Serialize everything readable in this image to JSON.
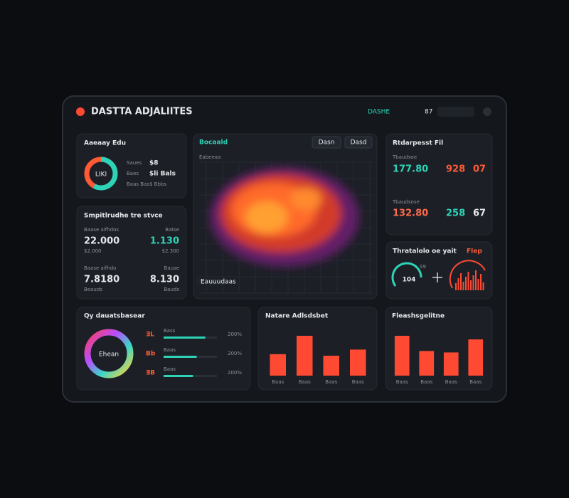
{
  "header": {
    "title": "DASTTA ADJALIITES",
    "status": "DASHE",
    "badge": "87"
  },
  "overview": {
    "title": "Aaeaay Edu",
    "center": "LIKI",
    "shares": [
      58,
      42
    ],
    "colors": [
      "#2ed3b7",
      "#ff5a36"
    ],
    "rows": [
      [
        "Saues",
        "$8"
      ],
      [
        "Baes",
        "$li Bals"
      ],
      [
        "Baas Bas",
        "$ Bbbs"
      ]
    ]
  },
  "summary": {
    "title": "Smpitlrudhe tre stvce",
    "stats": [
      {
        "label": "Baase aifhdos",
        "value": "22.000",
        "sub": "$2.000"
      },
      {
        "label": "Batse",
        "value": "1.130",
        "sub": "$2.300"
      },
      {
        "label": "Baase aifhdo",
        "value": "7.8180",
        "sub": "Beauds"
      },
      {
        "label": "Bause",
        "value": "8.130",
        "sub": "Bauds"
      }
    ]
  },
  "map": {
    "title": "Bocaald",
    "subtitle": "Eabeeaa",
    "buttons": [
      "Dasn",
      "Dasd"
    ],
    "legend": "Eauuudaas"
  },
  "metrics": {
    "title": "Rtdarpesst Fil",
    "groups": [
      {
        "label": "Tbaudsoe",
        "values": [
          "177.80",
          "928",
          "07"
        ]
      },
      {
        "label": "Tbaudsose",
        "values": [
          "132.80",
          "258",
          "67"
        ]
      }
    ]
  },
  "gauge": {
    "title": "Thratalolo oe yait",
    "accent": "Flep",
    "value": "104",
    "caption": "S9"
  },
  "distribution": {
    "title": "Qy dauatsbasear",
    "center": "Ehean",
    "rows": [
      {
        "label": "ƎL",
        "name": "Bass",
        "progress": 78,
        "value": "200%"
      },
      {
        "label": "Bb",
        "name": "Baas",
        "progress": 62,
        "value": "200%"
      },
      {
        "label": "ƎB",
        "name": "Baas",
        "progress": 55,
        "value": "200%"
      }
    ]
  },
  "activity": {
    "title": "Natare Adlsdsbet",
    "color": "#ff4a33",
    "categories": [
      "Baas",
      "Baas",
      "Baas",
      "Baas"
    ],
    "values": [
      28,
      52,
      26,
      34
    ]
  },
  "fleet": {
    "title": "Fleashsgelitne",
    "color": "#ff4a33",
    "categories": [
      "Baas",
      "Baas",
      "Baas",
      "Baas"
    ],
    "values": [
      55,
      34,
      32,
      50
    ]
  }
}
